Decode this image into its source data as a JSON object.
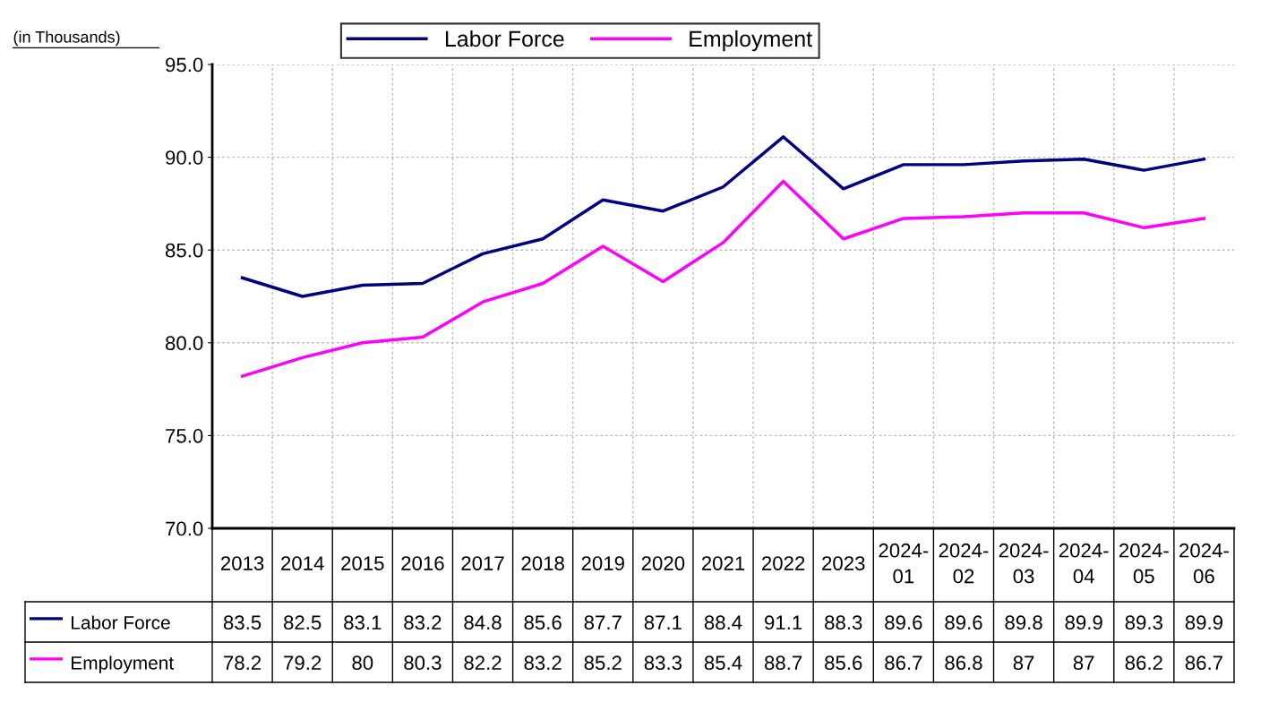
{
  "chart_data": {
    "type": "line",
    "ylabel": "(in Thousands)",
    "categories": [
      "2013",
      "2014",
      "2015",
      "2016",
      "2017",
      "2018",
      "2019",
      "2020",
      "2021",
      "2022",
      "2023",
      "2024-01",
      "2024-02",
      "2024-03",
      "2024-04",
      "2024-05",
      "2024-06"
    ],
    "series": [
      {
        "name": "Labor Force",
        "color": "#000080",
        "values": [
          83.5,
          82.5,
          83.1,
          83.2,
          84.8,
          85.6,
          87.7,
          87.1,
          88.4,
          91.1,
          88.3,
          89.6,
          89.6,
          89.8,
          89.9,
          89.3,
          89.9
        ],
        "value_labels": [
          "83.5",
          "82.5",
          "83.1",
          "83.2",
          "84.8",
          "85.6",
          "87.7",
          "87.1",
          "88.4",
          "91.1",
          "88.3",
          "89.6",
          "89.6",
          "89.8",
          "89.9",
          "89.3",
          "89.9"
        ]
      },
      {
        "name": "Employment",
        "color": "#ff00ff",
        "values": [
          78.2,
          79.2,
          80,
          80.3,
          82.2,
          83.2,
          85.2,
          83.3,
          85.4,
          88.7,
          85.6,
          86.7,
          86.8,
          87,
          87,
          86.2,
          86.7
        ],
        "value_labels": [
          "78.2",
          "79.2",
          "80",
          "80.3",
          "82.2",
          "83.2",
          "85.2",
          "83.3",
          "85.4",
          "88.7",
          "85.6",
          "86.7",
          "86.8",
          "87",
          "87",
          "86.2",
          "86.7"
        ]
      }
    ],
    "ylim": [
      70,
      95
    ],
    "yticks": [
      {
        "value": 70,
        "label": "70.0"
      },
      {
        "value": 75,
        "label": "75.0"
      },
      {
        "value": 80,
        "label": "80.0"
      },
      {
        "value": 85,
        "label": "85.0"
      },
      {
        "value": 90,
        "label": "90.0"
      },
      {
        "value": 95,
        "label": "95.0"
      }
    ],
    "grid": true,
    "legend": "top",
    "marker": "none",
    "line_style": "solid"
  }
}
